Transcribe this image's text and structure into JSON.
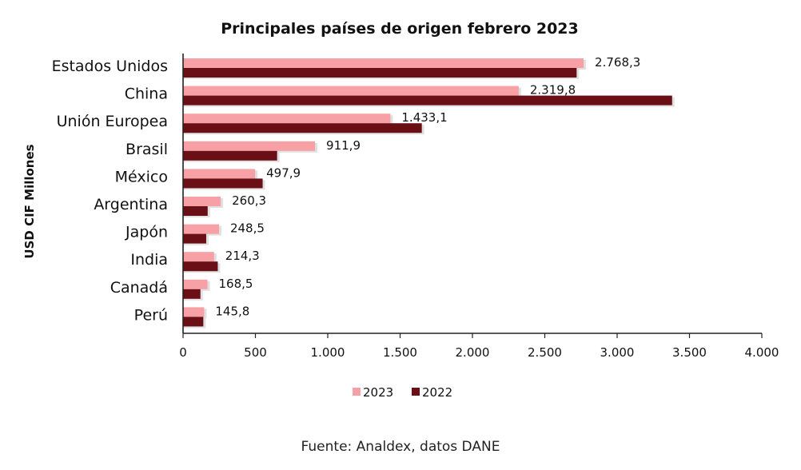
{
  "chart_data": {
    "type": "bar",
    "orientation": "horizontal",
    "title": "Principales países de origen febrero 2023",
    "ylabel": "USD CIF Millones",
    "categories": [
      "Estados Unidos",
      "China",
      "Unión Europea",
      "Brasil",
      "México",
      "Argentina",
      "Japón",
      "India",
      "Canadá",
      "Perú"
    ],
    "series": [
      {
        "name": "2023",
        "color": "#f7a1a6",
        "values": [
          2768.3,
          2319.8,
          1433.1,
          911.9,
          497.9,
          260.3,
          248.5,
          214.3,
          168.5,
          145.8
        ],
        "labels": [
          "2.768,3",
          "2.319,8",
          "1.433,1",
          "911,9",
          "497,9",
          "260,3",
          "248,5",
          "214,3",
          "168,5",
          "145,8"
        ]
      },
      {
        "name": "2022",
        "color": "#6b0f16",
        "values": [
          2720,
          3380,
          1650,
          650,
          550,
          170,
          160,
          240,
          120,
          140
        ]
      }
    ],
    "xlim": [
      0,
      4000
    ],
    "xticks": [
      0,
      500,
      1000,
      1500,
      2000,
      2500,
      3000,
      3500,
      4000
    ],
    "xtick_labels": [
      "0",
      "500",
      "1.000",
      "1.500",
      "2.000",
      "2.500",
      "3.000",
      "3.500",
      "4.000"
    ],
    "grid": false,
    "legend_position": "bottom"
  },
  "source": "Fuente: Analdex, datos DANE"
}
